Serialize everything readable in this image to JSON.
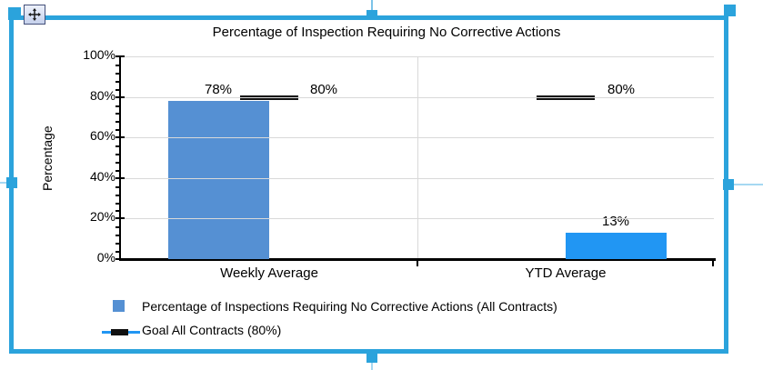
{
  "selection": {
    "border_color": "#2BA3DC",
    "handles": [
      "top-left",
      "top-middle",
      "top-right",
      "left-middle",
      "right-middle",
      "bottom-middle"
    ],
    "move_icon": "move-cross"
  },
  "chart_data": {
    "type": "bar",
    "title": "Percentage of Inspection Requiring No Corrective Actions",
    "categories": [
      "Weekly Average",
      "YTD Average"
    ],
    "series": [
      {
        "name": "Percentage of Inspections Requiring No Corrective Actions (All Contracts)",
        "type": "bar",
        "values": [
          78,
          13
        ],
        "labels": [
          "78%",
          "13%"
        ],
        "bar_colors": [
          "#5590D3",
          "#2196F3"
        ]
      },
      {
        "name": "Goal All Contracts (80%)",
        "type": "line",
        "values": [
          80,
          80
        ],
        "labels": [
          "80%",
          "80%"
        ],
        "marker_color": "#111111",
        "line_color": "#2196F3"
      }
    ],
    "ylabel": "Percentage",
    "xlabel": "",
    "ylim": [
      0,
      100
    ],
    "yticks": [
      "0%",
      "20%",
      "40%",
      "60%",
      "80%",
      "100%"
    ],
    "minor_tick_step": 4,
    "grid": {
      "horizontal": true,
      "vertical_category_divider": true,
      "color": "#D9D9D9"
    },
    "legend_position": "bottom-left"
  },
  "legend": {
    "items": [
      {
        "label": "Percentage of Inspections Requiring No Corrective Actions (All Contracts)",
        "swatch": "square",
        "color": "#5590D3"
      },
      {
        "label": "Goal All Contracts (80%)",
        "swatch": "line-with-dash",
        "line_color": "#2196F3",
        "dash_color": "#111111"
      }
    ]
  }
}
